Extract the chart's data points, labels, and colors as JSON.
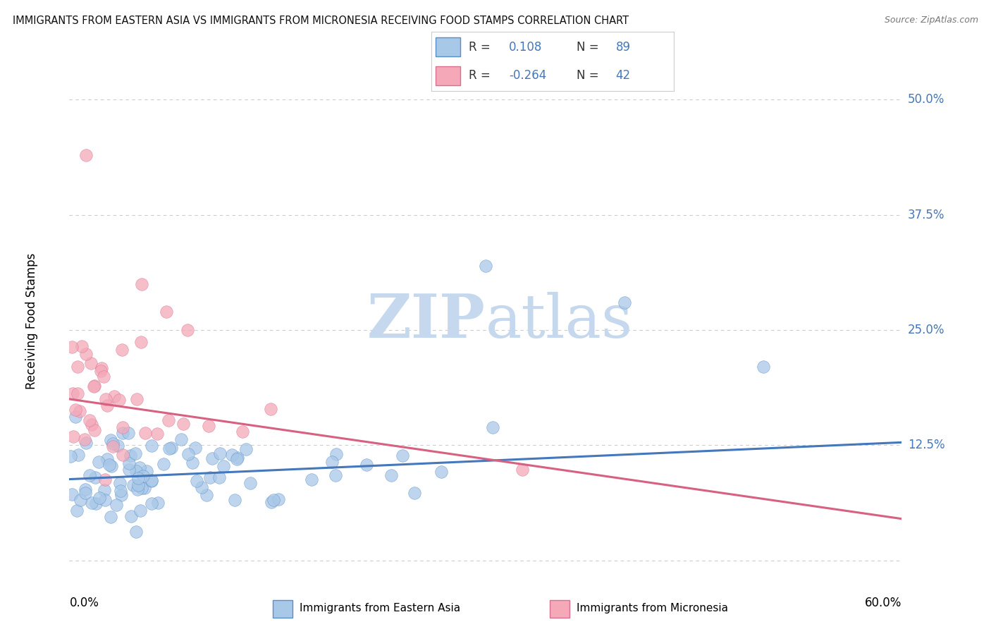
{
  "title": "IMMIGRANTS FROM EASTERN ASIA VS IMMIGRANTS FROM MICRONESIA RECEIVING FOOD STAMPS CORRELATION CHART",
  "source": "Source: ZipAtlas.com",
  "watermark_zip": "ZIP",
  "watermark_atlas": "atlas",
  "ylabel": "Receiving Food Stamps",
  "xmin": 0.0,
  "xmax": 0.6,
  "ymin": -0.02,
  "ymax": 0.54,
  "ytick_positions": [
    0.0,
    0.125,
    0.25,
    0.375,
    0.5
  ],
  "ytick_labels": [
    "",
    "12.5%",
    "25.0%",
    "37.5%",
    "50.0%"
  ],
  "xtick_left": "0.0%",
  "xtick_right": "60.0%",
  "series_blue": {
    "label": "Immigrants from Eastern Asia",
    "R": 0.108,
    "N": 89,
    "color": "#A8C8E8",
    "edge_color": "#5A8EC8",
    "trend_color": "#4477BB"
  },
  "series_pink": {
    "label": "Immigrants from Micronesia",
    "R": -0.264,
    "N": 42,
    "color": "#F4A8B8",
    "edge_color": "#D87090",
    "trend_color": "#D86080"
  },
  "legend_R_N_color": "#4477BB",
  "legend_label_color": "#333333",
  "bg_color": "#FFFFFF",
  "grid_color": "#CCCCCC",
  "right_label_color": "#4477BB",
  "blue_trend_start_y": 0.088,
  "blue_trend_end_y": 0.128,
  "pink_trend_start_y": 0.175,
  "pink_trend_end_y": 0.045
}
